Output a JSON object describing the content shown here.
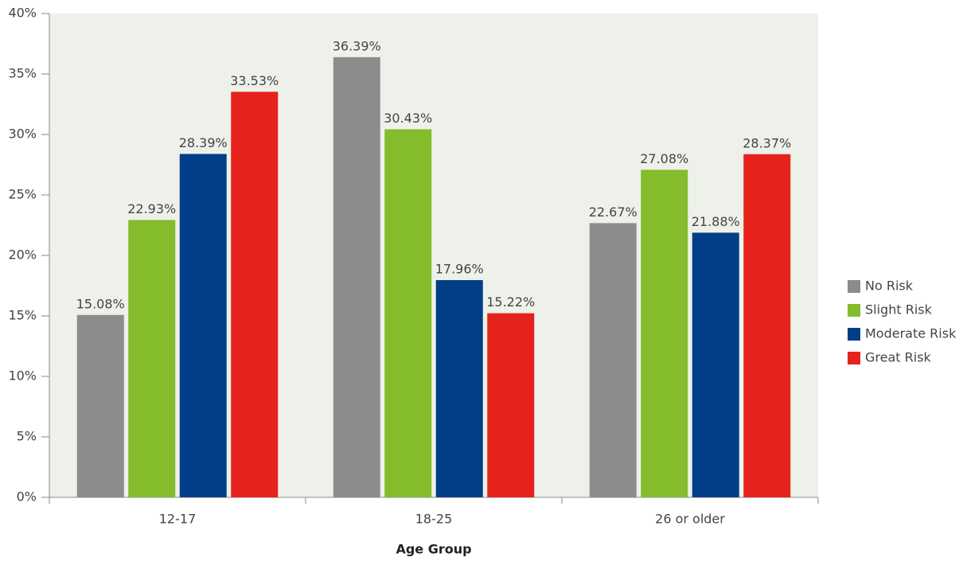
{
  "chart_data": {
    "type": "bar",
    "xlabel": "Age Group",
    "categories": [
      "12-17",
      "18-25",
      "26 or older"
    ],
    "series": [
      {
        "name": "No Risk",
        "color": "#8c8c8c",
        "values": [
          15.08,
          36.39,
          22.67
        ],
        "value_labels": [
          "15.08%",
          "36.39%",
          "22.67%"
        ]
      },
      {
        "name": "Slight Risk",
        "color": "#84bc2c",
        "values": [
          22.93,
          30.43,
          27.08
        ],
        "value_labels": [
          "22.93%",
          "30.43%",
          "27.08%"
        ]
      },
      {
        "name": "Moderate Risk",
        "color": "#003f87",
        "values": [
          28.39,
          17.96,
          21.88
        ],
        "value_labels": [
          "28.39%",
          "17.96%",
          "21.88%"
        ]
      },
      {
        "name": "Great Risk",
        "color": "#e5221b",
        "values": [
          33.53,
          15.22,
          28.37
        ],
        "value_labels": [
          "33.53%",
          "15.22%",
          "28.37%"
        ]
      }
    ],
    "ylim": [
      0,
      40
    ],
    "yticks": [
      {
        "value": 0,
        "label": "0%"
      },
      {
        "value": 5,
        "label": "5%"
      },
      {
        "value": 10,
        "label": "10%"
      },
      {
        "value": 15,
        "label": "15%"
      },
      {
        "value": 20,
        "label": "20%"
      },
      {
        "value": 25,
        "label": "25%"
      },
      {
        "value": 30,
        "label": "30%"
      },
      {
        "value": 35,
        "label": "35%"
      },
      {
        "value": 40,
        "label": "40%"
      }
    ],
    "legend": "right"
  }
}
